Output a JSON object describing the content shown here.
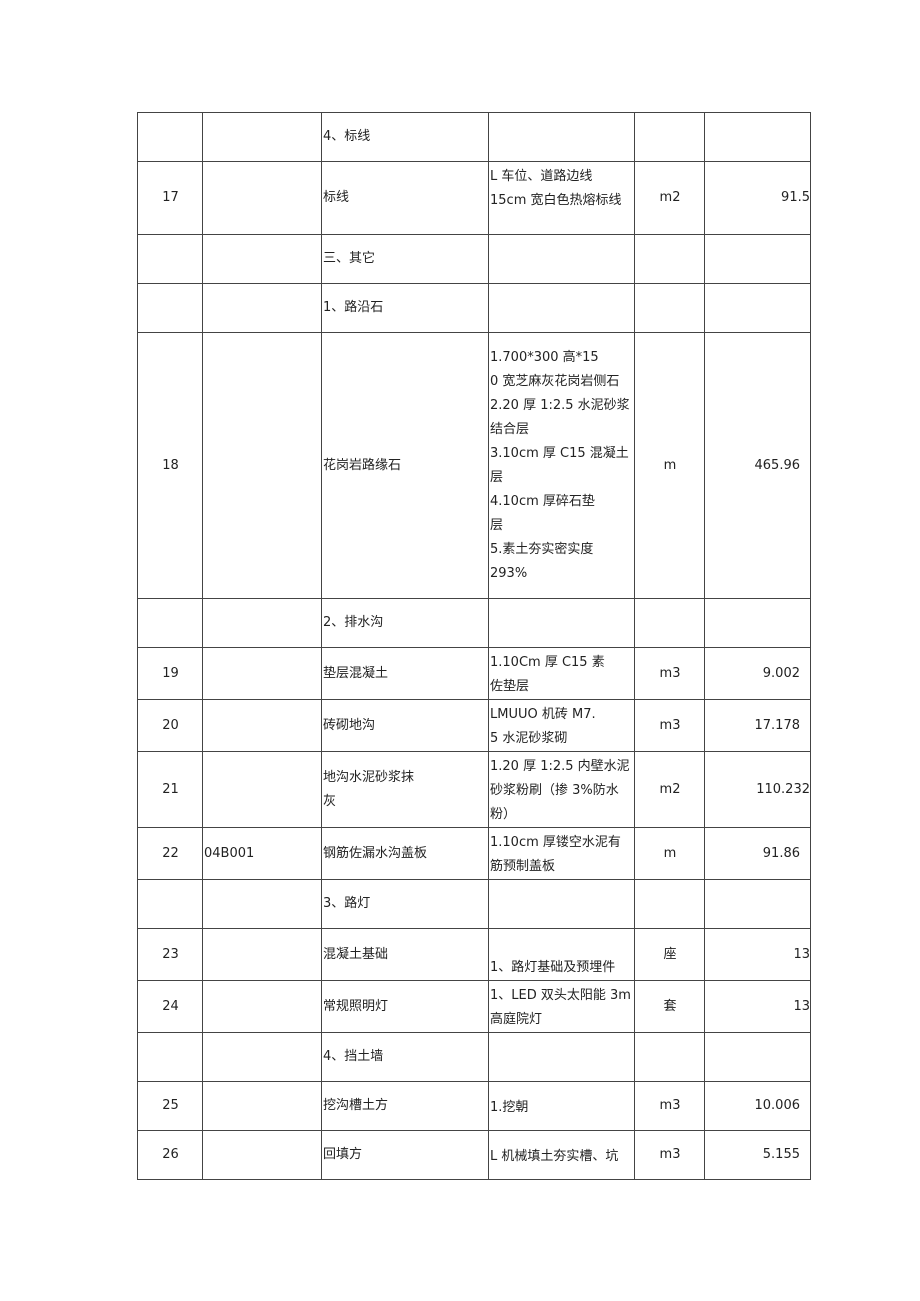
{
  "rows": [
    {
      "no": "",
      "code": "",
      "name": "4、标线",
      "desc": "",
      "unit": "",
      "qty": ""
    },
    {
      "no": "17",
      "code": "",
      "name": "标线",
      "desc": "L 车位、道路边线\n15cm 宽白色热熔标线",
      "unit": "m2",
      "qty": "91.5"
    },
    {
      "no": "",
      "code": "",
      "name": "三、其它",
      "desc": "",
      "unit": "",
      "qty": ""
    },
    {
      "no": "",
      "code": "",
      "name": "1、路沿石",
      "desc": "",
      "unit": "",
      "qty": ""
    },
    {
      "no": "18",
      "code": "",
      "name": "花岗岩路缘石",
      "desc": "1.700*300 高*15\n0 宽芝麻灰花岗岩侧石\n2.20 厚 1:2.5 水泥砂浆\n结合层\n3.10cm 厚 C15 混凝土\n层\n4.10cm 厚碎石垫\n层\n5.素土夯实密实度\n293%",
      "unit": "m",
      "qty": "465.96"
    },
    {
      "no": "",
      "code": "",
      "name": "2、排水沟",
      "desc": "",
      "unit": "",
      "qty": ""
    },
    {
      "no": "19",
      "code": "",
      "name": "垫层混凝土",
      "desc": "1.10Cm 厚 C15 素\n佐垫层",
      "unit": "m3",
      "qty": "9.002"
    },
    {
      "no": "20",
      "code": "",
      "name": "砖砌地沟",
      "desc": "LMUUO 机砖 M7.\n5 水泥砂浆砌",
      "unit": "m3",
      "qty": "17.178"
    },
    {
      "no": "21",
      "code": "",
      "name": "地沟水泥砂浆抹\n灰",
      "desc": "1.20 厚 1:2.5 内壁水泥\n砂浆粉刷（掺 3%防水\n粉）",
      "unit": "m2",
      "qty": "110.232"
    },
    {
      "no": "22",
      "code": "04B001",
      "name": "钢筋佐漏水沟盖板",
      "desc": "1.10cm 厚镂空水泥有\n筋预制盖板",
      "unit": "m",
      "qty": "91.86"
    },
    {
      "no": "",
      "code": "",
      "name": "3、路灯",
      "desc": "",
      "unit": "",
      "qty": ""
    },
    {
      "no": "23",
      "code": "",
      "name": "混凝土基础",
      "desc": "\n1、路灯基础及预埋件",
      "unit": "座",
      "qty": "13"
    },
    {
      "no": "24",
      "code": "",
      "name": "常规照明灯",
      "desc": "1、LED 双头太阳能 3m\n高庭院灯",
      "unit": "套",
      "qty": "13"
    },
    {
      "no": "",
      "code": "",
      "name": "4、挡土墙",
      "desc": "",
      "unit": "",
      "qty": ""
    },
    {
      "no": "25",
      "code": "",
      "name": "挖沟槽土方",
      "desc": "1.挖朝",
      "unit": "m3",
      "qty": "10.006"
    },
    {
      "no": "26",
      "code": "",
      "name": "回填方",
      "desc": "L 机械填土夯实槽、坑",
      "unit": "m3",
      "qty": "5.155"
    }
  ]
}
